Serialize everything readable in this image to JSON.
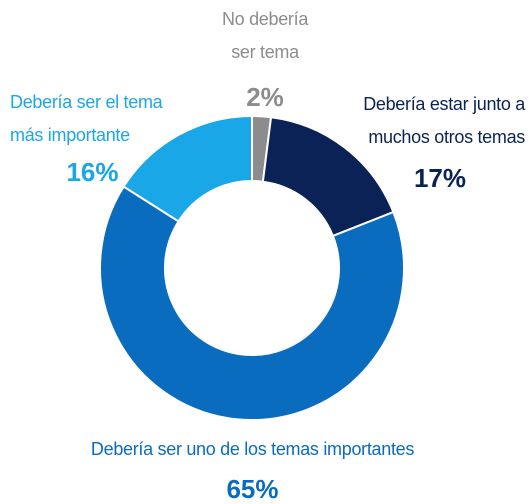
{
  "chart_data": {
    "type": "donut",
    "categories": [
      "No debería ser tema",
      "Debería estar junto a muchos otros temas",
      "Debería ser uno de los temas importantes",
      "Debería ser el tema más importante"
    ],
    "values": [
      2,
      17,
      65,
      16
    ],
    "value_labels": [
      "2%",
      "17%",
      "65%",
      "16%"
    ],
    "colors": [
      "#8c8c8c",
      "#0b2257",
      "#0a6cbf",
      "#1aa7e8"
    ],
    "label_colors": [
      "#8c8c8c",
      "#0b2257",
      "#0a6cbf",
      "#1aa7e8"
    ]
  }
}
